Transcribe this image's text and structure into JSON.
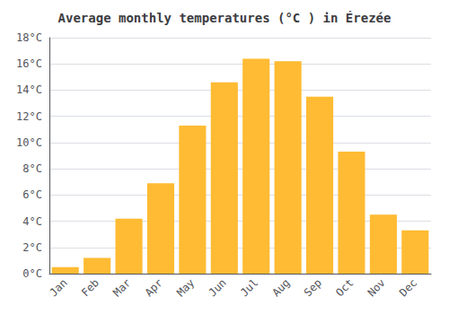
{
  "chart_data": {
    "type": "bar",
    "title": "Average monthly temperatures (°C ) in Érezée",
    "categories": [
      "Jan",
      "Feb",
      "Mar",
      "Apr",
      "May",
      "Jun",
      "Jul",
      "Aug",
      "Sep",
      "Oct",
      "Nov",
      "Dec"
    ],
    "values": [
      0.5,
      1.2,
      4.2,
      6.9,
      11.3,
      14.6,
      16.4,
      16.2,
      13.5,
      9.3,
      4.5,
      3.3
    ],
    "color": "#FFBB33",
    "ylim": [
      0,
      18
    ],
    "yticks": [
      {
        "value": 0,
        "label": "0°C"
      },
      {
        "value": 2,
        "label": "2°C"
      },
      {
        "value": 4,
        "label": "4°C"
      },
      {
        "value": 6,
        "label": "6°C"
      },
      {
        "value": 8,
        "label": "8°C"
      },
      {
        "value": 10,
        "label": "10°C"
      },
      {
        "value": 12,
        "label": "12°C"
      },
      {
        "value": 14,
        "label": "14°C"
      },
      {
        "value": 16,
        "label": "16°C"
      },
      {
        "value": 18,
        "label": "18°C"
      }
    ],
    "grid": true
  }
}
